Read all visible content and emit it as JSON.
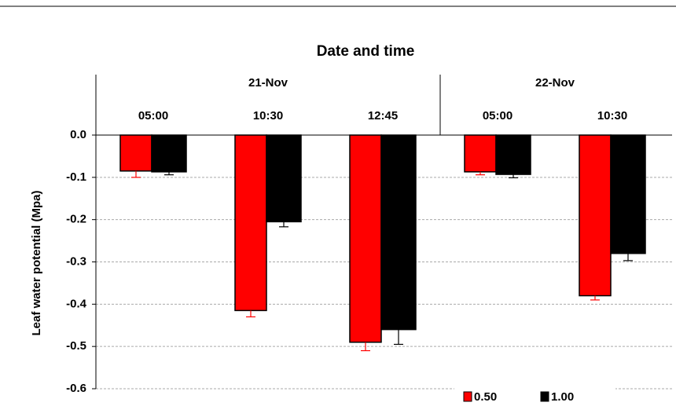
{
  "chart_data": {
    "type": "bar",
    "title": "Date and time",
    "y_label": "Leaf water potential (Mpa)",
    "date_groups": [
      "21-Nov",
      "22-Nov"
    ],
    "categories": [
      "05:00",
      "10:30",
      "12:45",
      "05:00",
      "10:30"
    ],
    "series": [
      {
        "name": "0.50",
        "color": "#ff0000",
        "values": [
          -0.085,
          -0.415,
          -0.49,
          -0.087,
          -0.38
        ],
        "errors": [
          0.015,
          0.015,
          0.02,
          0.007,
          0.01
        ]
      },
      {
        "name": "1.00",
        "color": "#000000",
        "values": [
          -0.087,
          -0.205,
          -0.46,
          -0.093,
          -0.28
        ],
        "errors": [
          0.007,
          0.012,
          0.035,
          0.008,
          0.017
        ]
      }
    ],
    "ylim": [
      -0.6,
      0
    ],
    "yticks": [
      {
        "value": 0,
        "label": "0.0"
      },
      -0.1,
      -0.2,
      -0.3,
      -0.4,
      -0.5,
      -0.6
    ],
    "grid": true,
    "legend": "bottom-right"
  }
}
